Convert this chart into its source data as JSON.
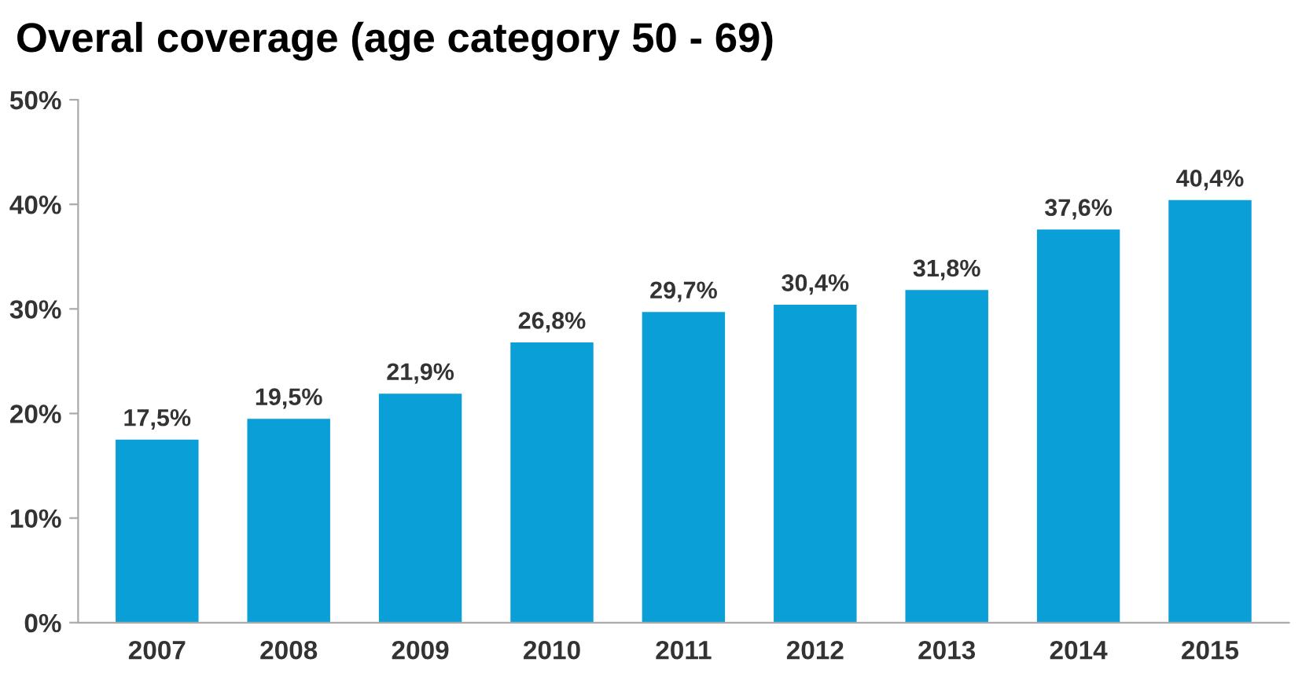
{
  "chart_data": {
    "type": "bar",
    "title": "Overal coverage (age category 50 - 69)",
    "categories": [
      "2007",
      "2008",
      "2009",
      "2010",
      "2011",
      "2012",
      "2013",
      "2014",
      "2015"
    ],
    "values": [
      17.5,
      19.5,
      21.9,
      26.8,
      29.7,
      30.4,
      31.8,
      37.6,
      40.4
    ],
    "value_labels": [
      "17,5%",
      "19,5%",
      "21,9%",
      "26,8%",
      "29,7%",
      "30,4%",
      "31,8%",
      "37,6%",
      "40,4%"
    ],
    "color": "#0a9fd6",
    "ylim": [
      0,
      50
    ],
    "yticks": [
      {
        "value": 0,
        "label": "0%"
      },
      {
        "value": 10,
        "label": "10%"
      },
      {
        "value": 20,
        "label": "20%"
      },
      {
        "value": 30,
        "label": "30%"
      },
      {
        "value": 40,
        "label": "40%"
      },
      {
        "value": 50,
        "label": "50%"
      }
    ],
    "grid": false,
    "legend": false
  }
}
